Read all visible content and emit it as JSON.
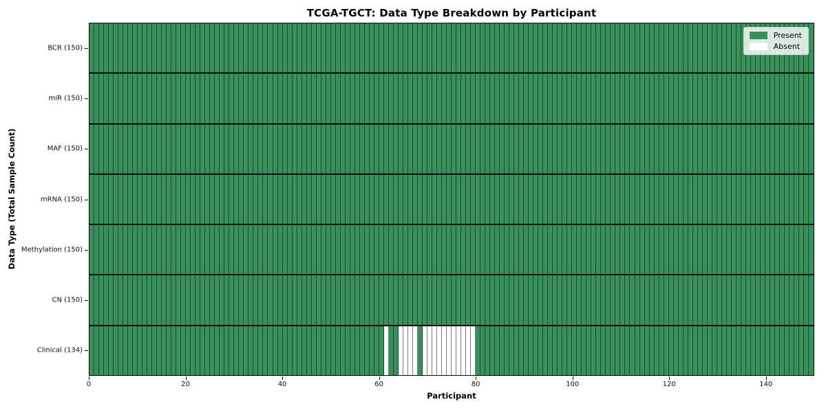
{
  "title": "TCGA-TGCT: Data Type Breakdown by Participant",
  "axes": {
    "xlabel": "Participant",
    "ylabel": "Data Type (Total Sample Count)"
  },
  "legend": {
    "present_label": "Present",
    "absent_label": "Absent",
    "position": "upper right"
  },
  "colors": {
    "present": "#38905a",
    "absent": "#ffffff",
    "grid_line": "rgba(0,0,0,0.5)",
    "row_separator": "#0d0d0d"
  },
  "chart_data": {
    "type": "heatmap",
    "title": "TCGA-TGCT: Data Type Breakdown by Participant",
    "xlabel": "Participant",
    "ylabel": "Data Type (Total Sample Count)",
    "legend_entries": [
      "Present",
      "Absent"
    ],
    "legend_position": "upper right",
    "grid": "cell-borders",
    "n_participants": 150,
    "xlim": [
      0,
      150
    ],
    "x_ticks": [
      0,
      20,
      40,
      60,
      80,
      100,
      120,
      140
    ],
    "value_encoding": {
      "present": 1,
      "absent": 0
    },
    "rows": [
      {
        "label": "BCR (150)",
        "data_type": "BCR",
        "present_count": 150,
        "absent_participants": []
      },
      {
        "label": "miR (150)",
        "data_type": "miR",
        "present_count": 150,
        "absent_participants": []
      },
      {
        "label": "MAF (150)",
        "data_type": "MAF",
        "present_count": 150,
        "absent_participants": []
      },
      {
        "label": "mRNA (150)",
        "data_type": "mRNA",
        "present_count": 150,
        "absent_participants": []
      },
      {
        "label": "Methylation (150)",
        "data_type": "Methylation",
        "present_count": 150,
        "absent_participants": []
      },
      {
        "label": "CN (150)",
        "data_type": "CN",
        "present_count": 150,
        "absent_participants": []
      },
      {
        "label": "Clinical (134)",
        "data_type": "Clinical",
        "present_count": 134,
        "absent_participants": [
          61,
          64,
          65,
          66,
          67,
          69,
          70,
          71,
          72,
          73,
          74,
          75,
          76,
          77,
          78,
          79
        ]
      }
    ]
  }
}
